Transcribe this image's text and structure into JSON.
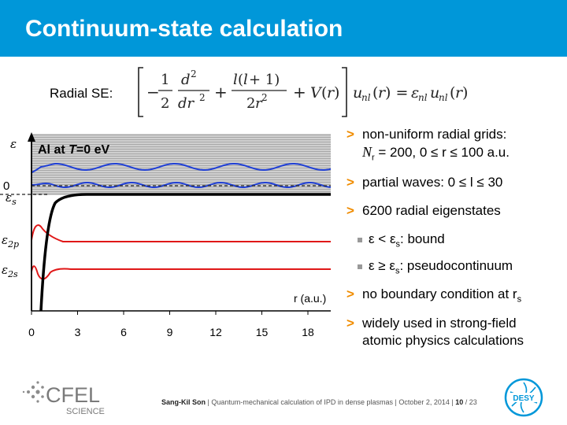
{
  "slide": {
    "title": "Continuum-state calculation",
    "se_label": "Radial SE:"
  },
  "plot": {
    "panel_label_prefix": "Al at ",
    "panel_label_var": "T",
    "panel_label_suffix": "=0 eV",
    "y_axis_label": "ε",
    "zero_label": "0",
    "eps_s_label": "ε",
    "eps_s_sub": "s",
    "eps_2p_label": "ε",
    "eps_2p_sub": "2p",
    "eps_2s_label": "ε",
    "eps_2s_sub": "2s",
    "x_axis_label": "r (a.u.)",
    "x_ticks": [
      "0",
      "3",
      "6",
      "9",
      "12",
      "15",
      "18"
    ]
  },
  "bullets": {
    "b1_line1": "non-uniform radial grids:",
    "b1_line2": "N",
    "b1_line2_sub": "r",
    "b1_line2_rest": " = 200, 0 ≤ r ≤ 100 a.u.",
    "b2": "partial waves: 0 ≤ l ≤ 30",
    "b3": "6200 radial eigenstates",
    "sub1": "ε < ε",
    "sub1_sub": "s",
    "sub1_rest": ": bound",
    "sub2": "ε ≥ ε",
    "sub2_sub": "s",
    "sub2_rest": ": pseudocontinuum",
    "b4": "no boundary condition at r",
    "b4_sub": "s",
    "b5_line1": "widely used in strong-field",
    "b5_line2": "atomic physics calculations"
  },
  "footer": {
    "author": "Sang-Kil Son",
    "talk": "Quantum-mechanical calculation of IPD in dense plasmas",
    "date": "October 2, 2014",
    "page": "10",
    "total": "23"
  },
  "logos": {
    "cfel_text": "CFEL",
    "cfel_sub": "SCIENCE",
    "desy_text": "DESY"
  },
  "colors": {
    "title_bar": "#0097d9",
    "bullet_mark": "#f08c00",
    "continuum": "#1f3fd6",
    "bound": "#e01818"
  }
}
